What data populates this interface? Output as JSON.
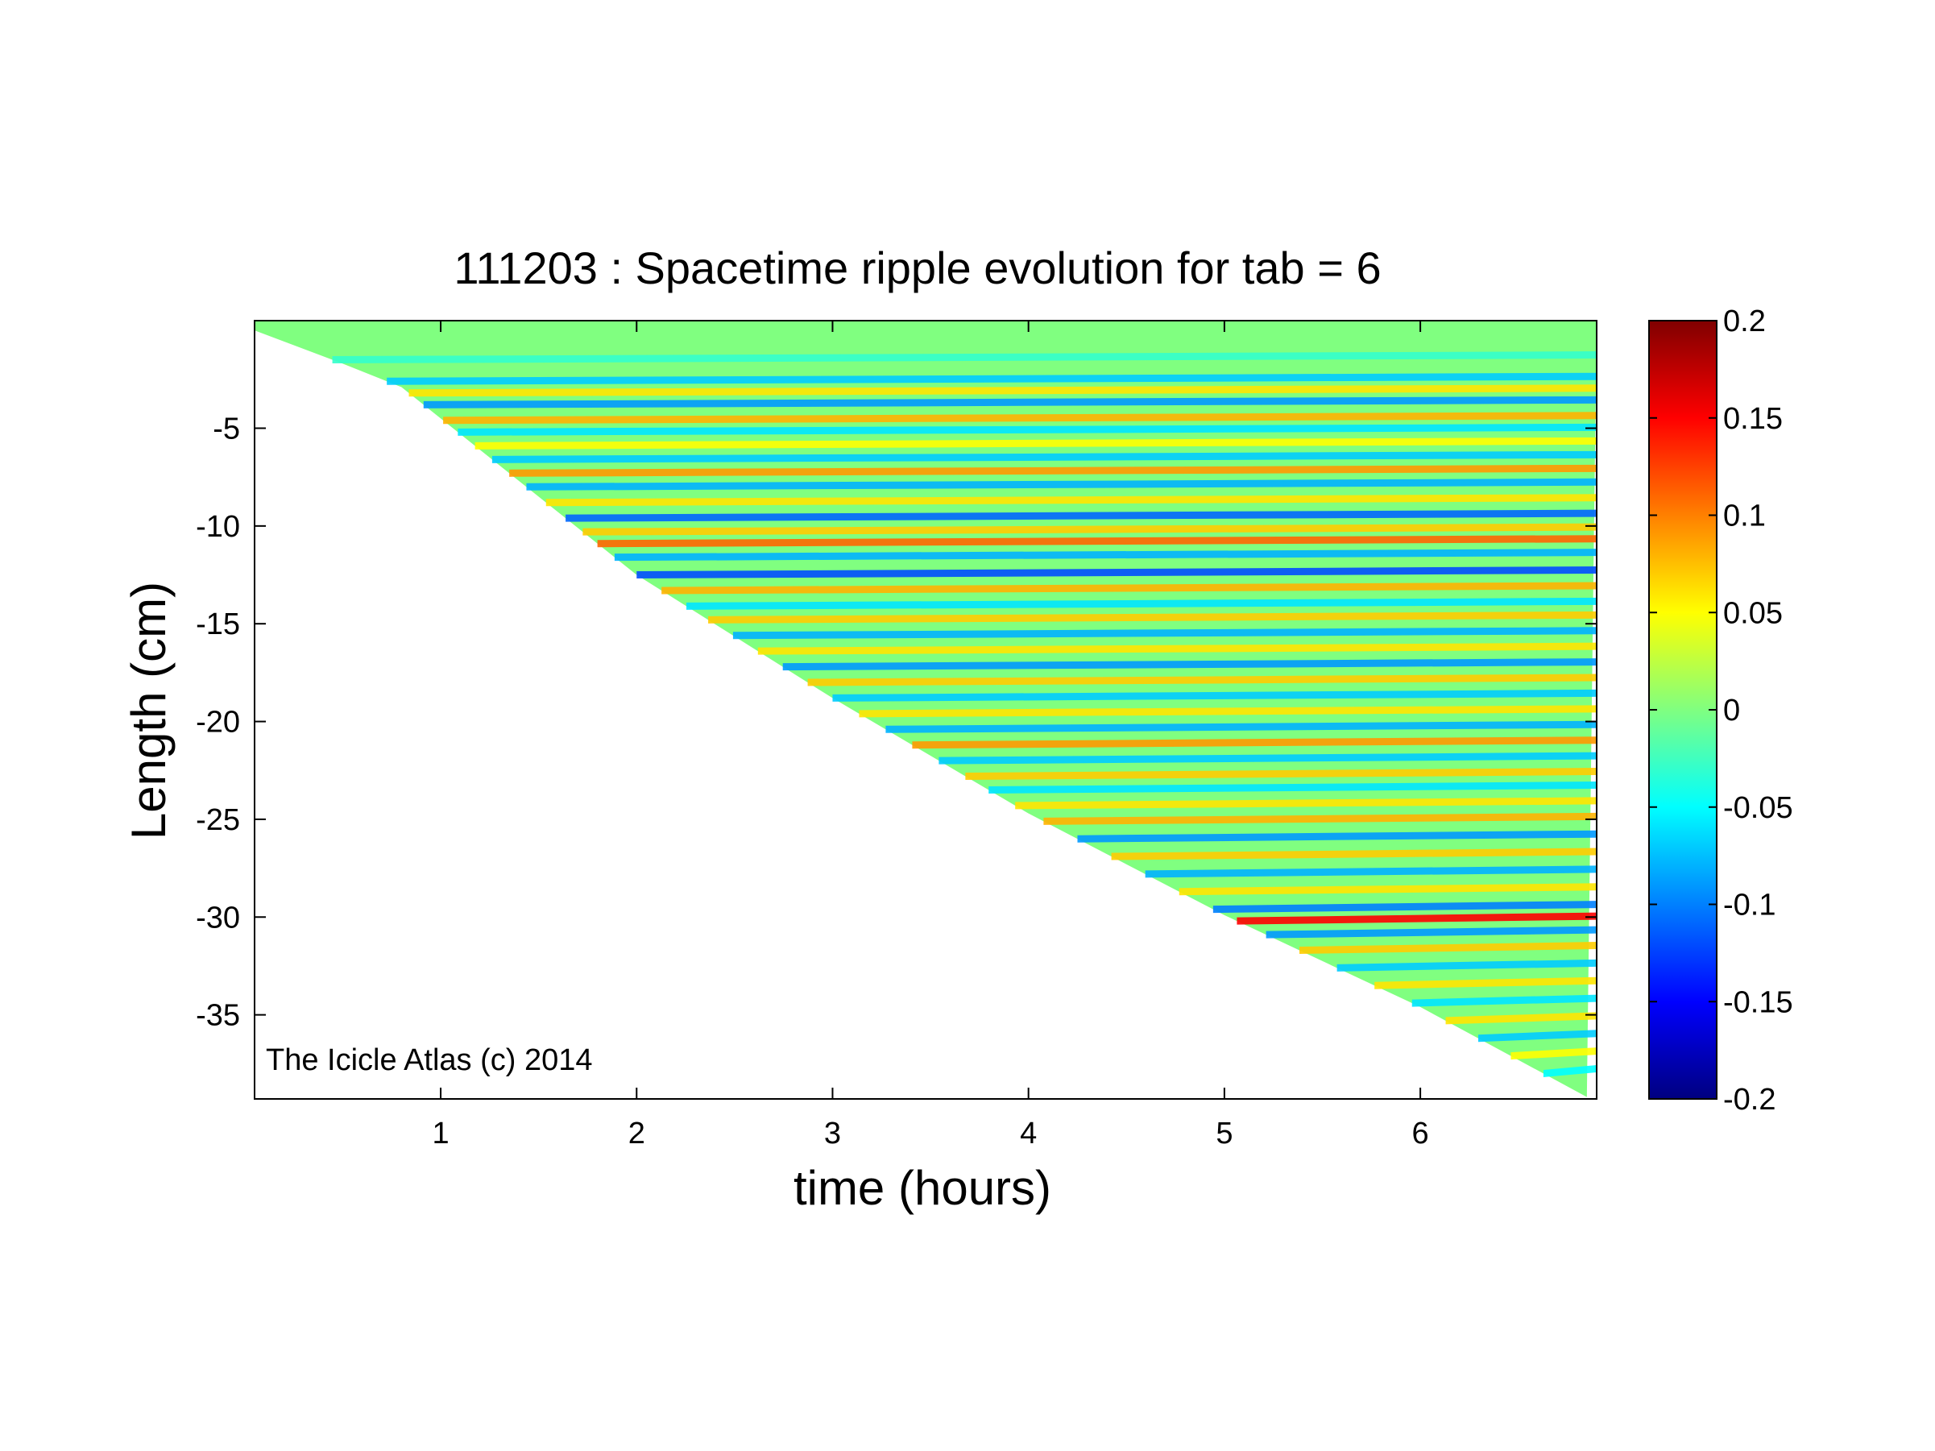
{
  "chart_data": {
    "type": "heatmap",
    "title": "111203 : Spacetime ripple evolution for tab = 6",
    "xlabel": "time (hours)",
    "ylabel": "Length (cm)",
    "annotation": "The Icicle Atlas (c) 2014",
    "xlim": [
      0.05,
      6.9
    ],
    "ylim": [
      -39.3,
      0.5
    ],
    "xticks": [
      1,
      2,
      3,
      4,
      5,
      6
    ],
    "xtick_labels": [
      "1",
      "2",
      "3",
      "4",
      "5",
      "6"
    ],
    "yticks": [
      -5,
      -10,
      -15,
      -20,
      -25,
      -30,
      -35
    ],
    "ytick_labels": [
      "-5",
      "-10",
      "-15",
      "-20",
      "-25",
      "-30",
      "-35"
    ],
    "colorbar": {
      "colormap": "jet",
      "clim": [
        -0.2,
        0.2
      ],
      "ticks": [
        0.2,
        0.15,
        0.1,
        0.05,
        0,
        -0.05,
        -0.1,
        -0.15,
        -0.2
      ],
      "tick_labels": [
        "0.2",
        "0.15",
        "0.1",
        "0.05",
        "0",
        "-0.05",
        "-0.1",
        "-0.15",
        "-0.2"
      ]
    },
    "data_boundary": {
      "description": "lower edge of data region (icicle tip length vs time)",
      "points": [
        [
          0.05,
          0.0
        ],
        [
          0.5,
          -1.7
        ],
        [
          0.8,
          -2.9
        ],
        [
          1.3,
          -6.9
        ],
        [
          2.0,
          -12.5
        ],
        [
          3.0,
          -18.8
        ],
        [
          4.0,
          -24.7
        ],
        [
          5.0,
          -29.9
        ],
        [
          6.0,
          -34.6
        ],
        [
          6.85,
          -39.2
        ]
      ]
    },
    "ripple_bands": [
      {
        "length": -1.5,
        "value": -0.03
      },
      {
        "length": -2.6,
        "value": -0.07
      },
      {
        "length": -3.2,
        "value": 0.06
      },
      {
        "length": -3.8,
        "value": -0.09
      },
      {
        "length": -4.6,
        "value": 0.08
      },
      {
        "length": -5.2,
        "value": -0.06
      },
      {
        "length": -5.9,
        "value": 0.05
      },
      {
        "length": -6.6,
        "value": -0.07
      },
      {
        "length": -7.3,
        "value": 0.09
      },
      {
        "length": -8.0,
        "value": -0.08
      },
      {
        "length": -8.8,
        "value": 0.06
      },
      {
        "length": -9.6,
        "value": -0.11
      },
      {
        "length": -10.3,
        "value": 0.07
      },
      {
        "length": -10.9,
        "value": 0.11
      },
      {
        "length": -11.6,
        "value": -0.08
      },
      {
        "length": -12.5,
        "value": -0.12
      },
      {
        "length": -13.3,
        "value": 0.08
      },
      {
        "length": -14.1,
        "value": -0.06
      },
      {
        "length": -14.8,
        "value": 0.07
      },
      {
        "length": -15.6,
        "value": -0.08
      },
      {
        "length": -16.4,
        "value": 0.06
      },
      {
        "length": -17.2,
        "value": -0.09
      },
      {
        "length": -18.0,
        "value": 0.07
      },
      {
        "length": -18.8,
        "value": -0.07
      },
      {
        "length": -19.6,
        "value": 0.06
      },
      {
        "length": -20.4,
        "value": -0.08
      },
      {
        "length": -21.2,
        "value": 0.09
      },
      {
        "length": -22.0,
        "value": -0.07
      },
      {
        "length": -22.8,
        "value": 0.07
      },
      {
        "length": -23.5,
        "value": -0.06
      },
      {
        "length": -24.3,
        "value": 0.06
      },
      {
        "length": -25.1,
        "value": 0.08
      },
      {
        "length": -26.0,
        "value": -0.09
      },
      {
        "length": -26.9,
        "value": 0.07
      },
      {
        "length": -27.8,
        "value": -0.08
      },
      {
        "length": -28.7,
        "value": 0.06
      },
      {
        "length": -29.6,
        "value": -0.1
      },
      {
        "length": -30.2,
        "value": 0.15
      },
      {
        "length": -30.9,
        "value": -0.09
      },
      {
        "length": -31.7,
        "value": 0.07
      },
      {
        "length": -32.6,
        "value": -0.07
      },
      {
        "length": -33.5,
        "value": 0.06
      },
      {
        "length": -34.4,
        "value": -0.06
      },
      {
        "length": -35.3,
        "value": 0.06
      },
      {
        "length": -36.2,
        "value": -0.07
      },
      {
        "length": -37.1,
        "value": 0.05
      },
      {
        "length": -38.0,
        "value": -0.05
      }
    ],
    "grid": false
  }
}
